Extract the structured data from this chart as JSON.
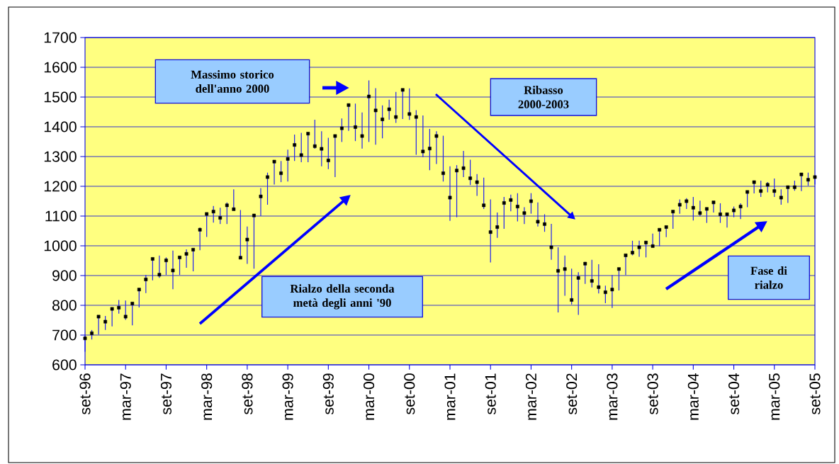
{
  "chart_data": {
    "type": "scatter",
    "x": [
      "1996-09",
      "1996-10",
      "1996-11",
      "1996-12",
      "1997-01",
      "1997-02",
      "1997-03",
      "1997-04",
      "1997-05",
      "1997-06",
      "1997-07",
      "1997-08",
      "1997-09",
      "1997-10",
      "1997-11",
      "1997-12",
      "1998-01",
      "1998-02",
      "1998-03",
      "1998-04",
      "1998-05",
      "1998-06",
      "1998-07",
      "1998-08",
      "1998-09",
      "1998-10",
      "1998-11",
      "1998-12",
      "1999-01",
      "1999-02",
      "1999-03",
      "1999-04",
      "1999-05",
      "1999-06",
      "1999-07",
      "1999-08",
      "1999-09",
      "1999-10",
      "1999-11",
      "1999-12",
      "2000-01",
      "2000-02",
      "2000-03",
      "2000-04",
      "2000-05",
      "2000-06",
      "2000-07",
      "2000-08",
      "2000-09",
      "2000-10",
      "2000-11",
      "2000-12",
      "2001-01",
      "2001-02",
      "2001-03",
      "2001-04",
      "2001-05",
      "2001-06",
      "2001-07",
      "2001-08",
      "2001-09",
      "2001-10",
      "2001-11",
      "2001-12",
      "2002-01",
      "2002-02",
      "2002-03",
      "2002-04",
      "2002-05",
      "2002-06",
      "2002-07",
      "2002-08",
      "2002-09",
      "2002-10",
      "2002-11",
      "2002-12",
      "2003-01",
      "2003-02",
      "2003-03",
      "2003-04",
      "2003-05",
      "2003-06",
      "2003-07",
      "2003-08",
      "2003-09",
      "2003-10",
      "2003-11",
      "2003-12",
      "2004-01",
      "2004-02",
      "2004-03",
      "2004-04",
      "2004-05",
      "2004-06",
      "2004-07",
      "2004-08",
      "2004-09",
      "2004-10",
      "2004-11",
      "2004-12",
      "2005-01",
      "2005-02",
      "2005-03",
      "2005-04",
      "2005-05",
      "2005-06",
      "2005-07",
      "2005-08",
      "2005-09"
    ],
    "series": [
      {
        "color": "#000000",
        "values": [
          689,
          706,
          762,
          745,
          788,
          792,
          762,
          806,
          853,
          887,
          956,
          903,
          951,
          917,
          961,
          973,
          987,
          1054,
          1107,
          1115,
          1094,
          1136,
          1123,
          960,
          1021,
          1102,
          1166,
          1231,
          1283,
          1244,
          1292,
          1339,
          1305,
          1377,
          1335,
          1326,
          1287,
          1369,
          1395,
          1473,
          1399,
          1369,
          1502,
          1455,
          1425,
          1459,
          1433,
          1524,
          1443,
          1433,
          1317,
          1327,
          1369,
          1244,
          1162,
          1253,
          1261,
          1227,
          1214,
          1136,
          1046,
          1063,
          1144,
          1154,
          1132,
          1110,
          1150,
          1081,
          1073,
          995,
          916,
          922,
          818,
          892,
          940,
          882,
          861,
          844,
          853,
          922,
          968,
          977,
          995,
          1011,
          999,
          1054,
          1063,
          1115,
          1138,
          1150,
          1128,
          1110,
          1124,
          1146,
          1106,
          1106,
          1119,
          1132,
          1181,
          1214,
          1184,
          1205,
          1184,
          1162,
          1197,
          1197,
          1240,
          1222,
          1231
        ],
        "errors": [
          [
            644,
            699
          ],
          [
            685,
            717
          ],
          [
            702,
            764
          ],
          [
            717,
            764
          ],
          [
            729,
            793
          ],
          [
            772,
            818
          ],
          [
            751,
            816
          ],
          [
            733,
            808
          ],
          [
            793,
            853
          ],
          [
            841,
            902
          ],
          [
            884,
            960
          ],
          [
            892,
            967
          ],
          [
            902,
            961
          ],
          [
            854,
            984
          ],
          [
            902,
            965
          ],
          [
            926,
            988
          ],
          [
            914,
            988
          ],
          [
            985,
            1061
          ],
          [
            1030,
            1112
          ],
          [
            1078,
            1134
          ],
          [
            1073,
            1128
          ],
          [
            1073,
            1146
          ],
          [
            1120,
            1190
          ],
          [
            957,
            1120
          ],
          [
            939,
            1065
          ],
          [
            923,
            1102
          ],
          [
            1100,
            1194
          ],
          [
            1138,
            1246
          ],
          [
            1206,
            1285
          ],
          [
            1214,
            1285
          ],
          [
            1216,
            1323
          ],
          [
            1285,
            1374
          ],
          [
            1281,
            1380
          ],
          [
            1281,
            1380
          ],
          [
            1326,
            1424
          ],
          [
            1267,
            1385
          ],
          [
            1258,
            1363
          ],
          [
            1231,
            1370
          ],
          [
            1349,
            1428
          ],
          [
            1386,
            1478
          ],
          [
            1352,
            1478
          ],
          [
            1327,
            1448
          ],
          [
            1349,
            1556
          ],
          [
            1340,
            1530
          ],
          [
            1361,
            1472
          ],
          [
            1424,
            1491
          ],
          [
            1413,
            1517
          ],
          [
            1426,
            1528
          ],
          [
            1423,
            1529
          ],
          [
            1306,
            1456
          ],
          [
            1298,
            1438
          ],
          [
            1254,
            1393
          ],
          [
            1275,
            1385
          ],
          [
            1216,
            1370
          ],
          [
            1084,
            1267
          ],
          [
            1096,
            1271
          ],
          [
            1231,
            1319
          ],
          [
            1204,
            1289
          ],
          [
            1168,
            1241
          ],
          [
            1124,
            1229
          ],
          [
            944,
            1156
          ],
          [
            1027,
            1112
          ],
          [
            1057,
            1164
          ],
          [
            1116,
            1172
          ],
          [
            1082,
            1177
          ],
          [
            1073,
            1130
          ],
          [
            1108,
            1177
          ],
          [
            1065,
            1146
          ],
          [
            1047,
            1106
          ],
          [
            953,
            1074
          ],
          [
            776,
            995
          ],
          [
            832,
            967
          ],
          [
            803,
            923
          ],
          [
            768,
            911
          ],
          [
            872,
            946
          ],
          [
            860,
            953
          ],
          [
            840,
            938
          ],
          [
            807,
            866
          ],
          [
            791,
            902
          ],
          [
            850,
            922
          ],
          [
            902,
            969
          ],
          [
            968,
            1017
          ],
          [
            963,
            1017
          ],
          [
            961,
            1017
          ],
          [
            997,
            1041
          ],
          [
            999,
            1057
          ],
          [
            1029,
            1066
          ],
          [
            1057,
            1118
          ],
          [
            1108,
            1156
          ],
          [
            1124,
            1160
          ],
          [
            1085,
            1164
          ],
          [
            1100,
            1152
          ],
          [
            1077,
            1126
          ],
          [
            1112,
            1148
          ],
          [
            1077,
            1143
          ],
          [
            1061,
            1110
          ],
          [
            1096,
            1132
          ],
          [
            1090,
            1143
          ],
          [
            1130,
            1184
          ],
          [
            1176,
            1217
          ],
          [
            1164,
            1219
          ],
          [
            1180,
            1214
          ],
          [
            1164,
            1226
          ],
          [
            1138,
            1190
          ],
          [
            1144,
            1202
          ],
          [
            1185,
            1219
          ],
          [
            1184,
            1243
          ],
          [
            1202,
            1246
          ],
          [
            1206,
            1236
          ]
        ]
      }
    ],
    "marker": "square",
    "xlim": [
      "1996-09",
      "2005-09"
    ],
    "xticks": [
      {
        "value": "1996-09",
        "label": "set-96"
      },
      {
        "value": "1997-03",
        "label": "mar-97"
      },
      {
        "value": "1997-09",
        "label": "set-97"
      },
      {
        "value": "1998-03",
        "label": "mar-98"
      },
      {
        "value": "1998-09",
        "label": "set-98"
      },
      {
        "value": "1999-03",
        "label": "mar-99"
      },
      {
        "value": "1999-09",
        "label": "set-99"
      },
      {
        "value": "2000-03",
        "label": "mar-00"
      },
      {
        "value": "2000-09",
        "label": "set-00"
      },
      {
        "value": "2001-03",
        "label": "mar-01"
      },
      {
        "value": "2001-09",
        "label": "set-01"
      },
      {
        "value": "2002-03",
        "label": "mar-02"
      },
      {
        "value": "2002-09",
        "label": "set-02"
      },
      {
        "value": "2003-03",
        "label": "mar-03"
      },
      {
        "value": "2003-09",
        "label": "set-03"
      },
      {
        "value": "2004-03",
        "label": "mar-04"
      },
      {
        "value": "2004-09",
        "label": "set-04"
      },
      {
        "value": "2005-03",
        "label": "mar-05"
      },
      {
        "value": "2005-09",
        "label": "set-05"
      }
    ],
    "ylim": [
      600,
      1700
    ],
    "yticks": [
      600,
      700,
      800,
      900,
      1000,
      1100,
      1200,
      1300,
      1400,
      1500,
      1600,
      1700
    ],
    "grid": "y",
    "annotations": [
      "Massimo storico dell'anno 2000",
      "Ribasso 2000-2003",
      "Rialzo della seconda metà degli anni '90",
      "Fase di rialzo"
    ]
  }
}
